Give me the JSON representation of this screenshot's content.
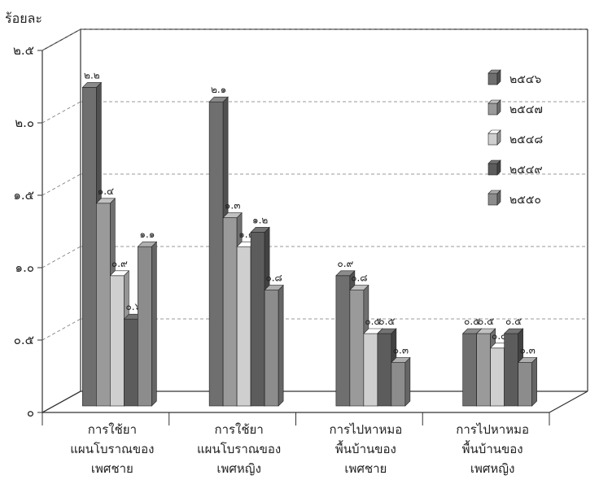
{
  "chart_data": {
    "type": "bar",
    "unit_label": "ร้อยละ",
    "ylim": [
      0,
      2.5
    ],
    "yticks": [
      {
        "value": 0,
        "label": "๐"
      },
      {
        "value": 0.5,
        "label": "๐.๕"
      },
      {
        "value": 1.0,
        "label": "๑.๐"
      },
      {
        "value": 1.5,
        "label": "๑.๕"
      },
      {
        "value": 2.0,
        "label": "๒.๐"
      },
      {
        "value": 2.5,
        "label": "๒.๕"
      }
    ],
    "grid": true,
    "legend_position": "top-right",
    "categories": [
      [
        "การใช้ยา",
        "แผนโบราณของ",
        "เพศชาย"
      ],
      [
        "การใช้ยา",
        "แผนโบราณของ",
        "เพศหญิง"
      ],
      [
        "การไปหาหมอ",
        "พื้นบ้านของ",
        "เพศชาย"
      ],
      [
        "การไปหาหมอ",
        "พื้นบ้านของ",
        "เพศหญิง"
      ]
    ],
    "series": [
      {
        "name": "๒๕๔๖",
        "color": "#6f6f6f",
        "values": [
          2.2,
          2.1,
          0.9,
          0.5
        ],
        "labels": [
          "๒.๒",
          "๒.๑",
          "๐.๙",
          "๐.๕"
        ]
      },
      {
        "name": "๒๕๔๗",
        "color": "#9a9a9a",
        "values": [
          1.4,
          1.3,
          0.8,
          0.5
        ],
        "labels": [
          "๑.๔",
          "๑.๓",
          "๐.๘",
          "๐.๕"
        ]
      },
      {
        "name": "๒๕๔๘",
        "color": "#cfcfcf",
        "values": [
          0.9,
          1.1,
          0.5,
          0.4
        ],
        "labels": [
          "๐.๙",
          "๑.๑",
          "๐.๕",
          "๐.๔"
        ]
      },
      {
        "name": "๒๕๔๙",
        "color": "#5c5c5c",
        "values": [
          0.6,
          1.2,
          0.5,
          0.5
        ],
        "labels": [
          "๐.๖",
          "๑.๒",
          "๐.๕",
          "๐.๕"
        ]
      },
      {
        "name": "๒๕๕๐",
        "color": "#8c8c8c",
        "values": [
          1.1,
          0.8,
          0.3,
          0.3
        ],
        "labels": [
          "๑.๑",
          "๐.๘",
          "๐.๓",
          "๐.๓"
        ]
      }
    ]
  }
}
